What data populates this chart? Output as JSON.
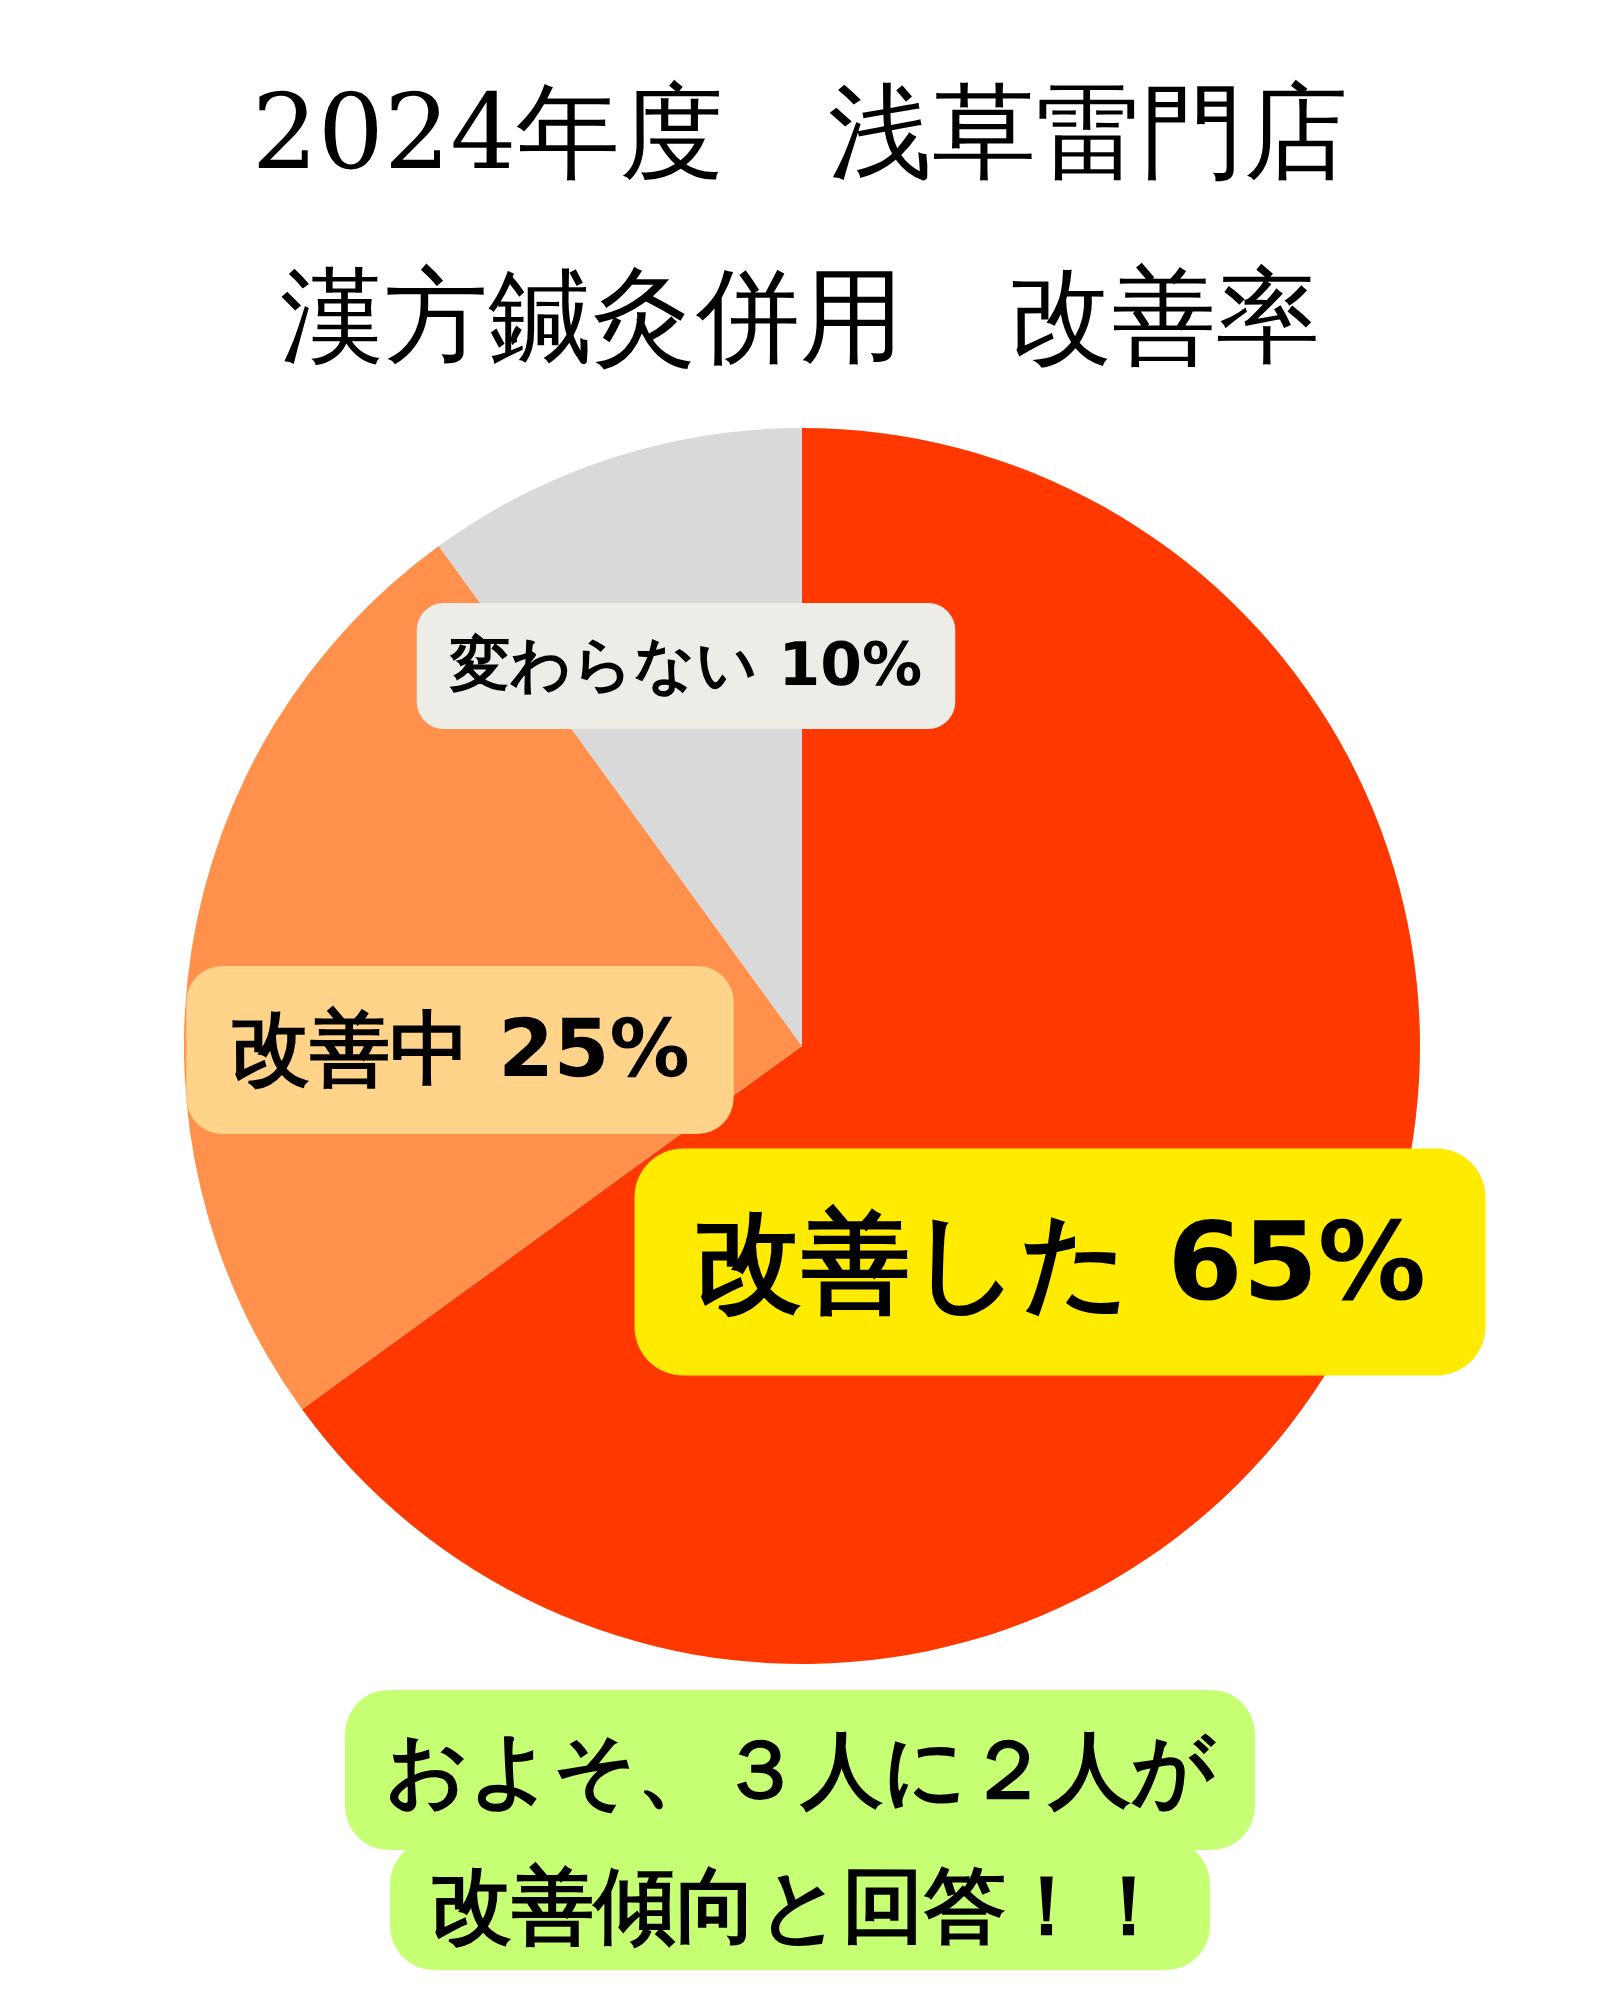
{
  "chart_data": {
    "type": "pie",
    "title": "2024年度　浅草雷門店漢方鍼灸併用　改善率",
    "categories": [
      "改善した",
      "改善中",
      "変わらない"
    ],
    "values": [
      65,
      25,
      10
    ],
    "value_labels": [
      "65%",
      "25%",
      "10%"
    ],
    "colors": [
      "#ff3800",
      "#ff914d",
      "#d9d9d9"
    ],
    "annotations": [
      "およそ、３人に２人が改善傾向と回答！！"
    ]
  }
}
